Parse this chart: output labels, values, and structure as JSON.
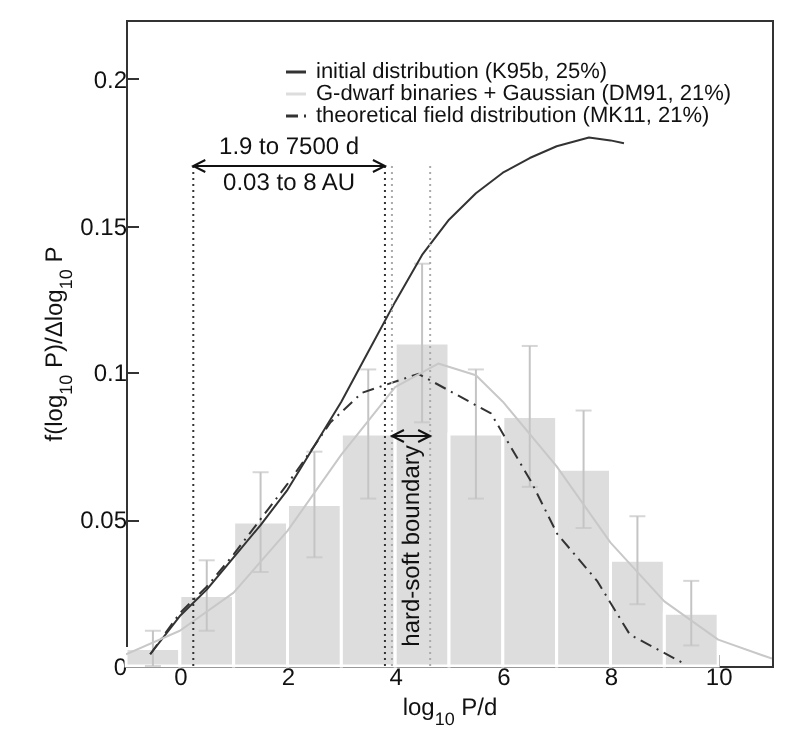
{
  "chart_data": {
    "type": "histogram",
    "xlabel": "log$_{10}$ P/d",
    "ylabel": "f(log$_{10}$ P)/Δlog$_{10}$ P",
    "bins": [
      -1,
      0,
      1,
      2,
      3,
      4,
      5,
      6,
      7,
      8,
      9,
      10
    ],
    "xlim": [
      -1,
      11
    ],
    "ylim": [
      0,
      0.22
    ],
    "xticks": [
      0,
      2,
      4,
      6,
      8,
      10
    ],
    "yticks": [
      0,
      0.05,
      0.1,
      0.15,
      0.2
    ],
    "legend": "top right",
    "grid": false,
    "series": [
      {
        "type": "line",
        "name": "initial distribution (K95b, 25%)",
        "color": "#333333",
        "line_style": "solid",
        "x": [
          -0.55,
          0,
          0.5,
          1,
          1.5,
          2,
          2.5,
          3,
          3.5,
          4,
          4.5,
          5,
          5.5,
          6,
          6.5,
          7,
          7.6,
          8,
          8.25
        ],
        "values": [
          0.004,
          0.017,
          0.026,
          0.037,
          0.048,
          0.06,
          0.075,
          0.09,
          0.107,
          0.124,
          0.14,
          0.152,
          0.161,
          0.168,
          0.173,
          0.177,
          0.18,
          0.179,
          0.178
        ]
      },
      {
        "name": "G-dwarf binaries + Gaussian (DM91, 21%)",
        "color": "#dddddd",
        "values": [
          0.006,
          0.024,
          0.049,
          0.055,
          0.079,
          0.11,
          0.079,
          0.085,
          0.067,
          0.036,
          0.018
        ],
        "errors": [
          0.006,
          0.012,
          0.017,
          0.018,
          0.022,
          0.027,
          0.022,
          0.024,
          0.02,
          0.015,
          0.011
        ]
      },
      {
        "type": "line",
        "name": "theoretical field distribution (MK11, 21%)",
        "color": "#333333",
        "line_style": "dashed",
        "x": [
          -0.55,
          0,
          0.5,
          1,
          1.5,
          2,
          2.5,
          2.8,
          3.38,
          4.43,
          5.78,
          6.52,
          7.01,
          7.75,
          8.36,
          9.35
        ],
        "values": [
          0.004,
          0.018,
          0.027,
          0.038,
          0.05,
          0.062,
          0.075,
          0.083,
          0.093,
          0.0995,
          0.086,
          0.063,
          0.045,
          0.029,
          0.0107,
          0.001
        ]
      },
      {
        "type": "line",
        "color": "#c8c8c8",
        "line_style": "solid",
        "x": [
          -1,
          0,
          1,
          2,
          3,
          4,
          4.8,
          5.5,
          6,
          7,
          8,
          9,
          10,
          11
        ],
        "values": [
          0.004,
          0.012,
          0.025,
          0.046,
          0.072,
          0.095,
          0.103,
          0.099,
          0.09,
          0.068,
          0.042,
          0.022,
          0.009,
          0.0025
        ]
      }
    ],
    "ref_lines": [
      {
        "axis": "x",
        "value": 0.25,
        "color": "#333333",
        "line_style": "dotted"
      },
      {
        "axis": "x",
        "value": 3.81,
        "color": "#333333",
        "line_style": "dotted"
      },
      {
        "axis": "x",
        "value": 3.94,
        "color": "#aaaaaa",
        "line_style": "dotted"
      },
      {
        "axis": "x",
        "value": 4.65,
        "color": "#aaaaaa",
        "line_style": "dotted"
      }
    ],
    "annotations": [
      "1.9 to 7500 d",
      "0.03 to 8 AU",
      "hard-soft boundary"
    ]
  }
}
